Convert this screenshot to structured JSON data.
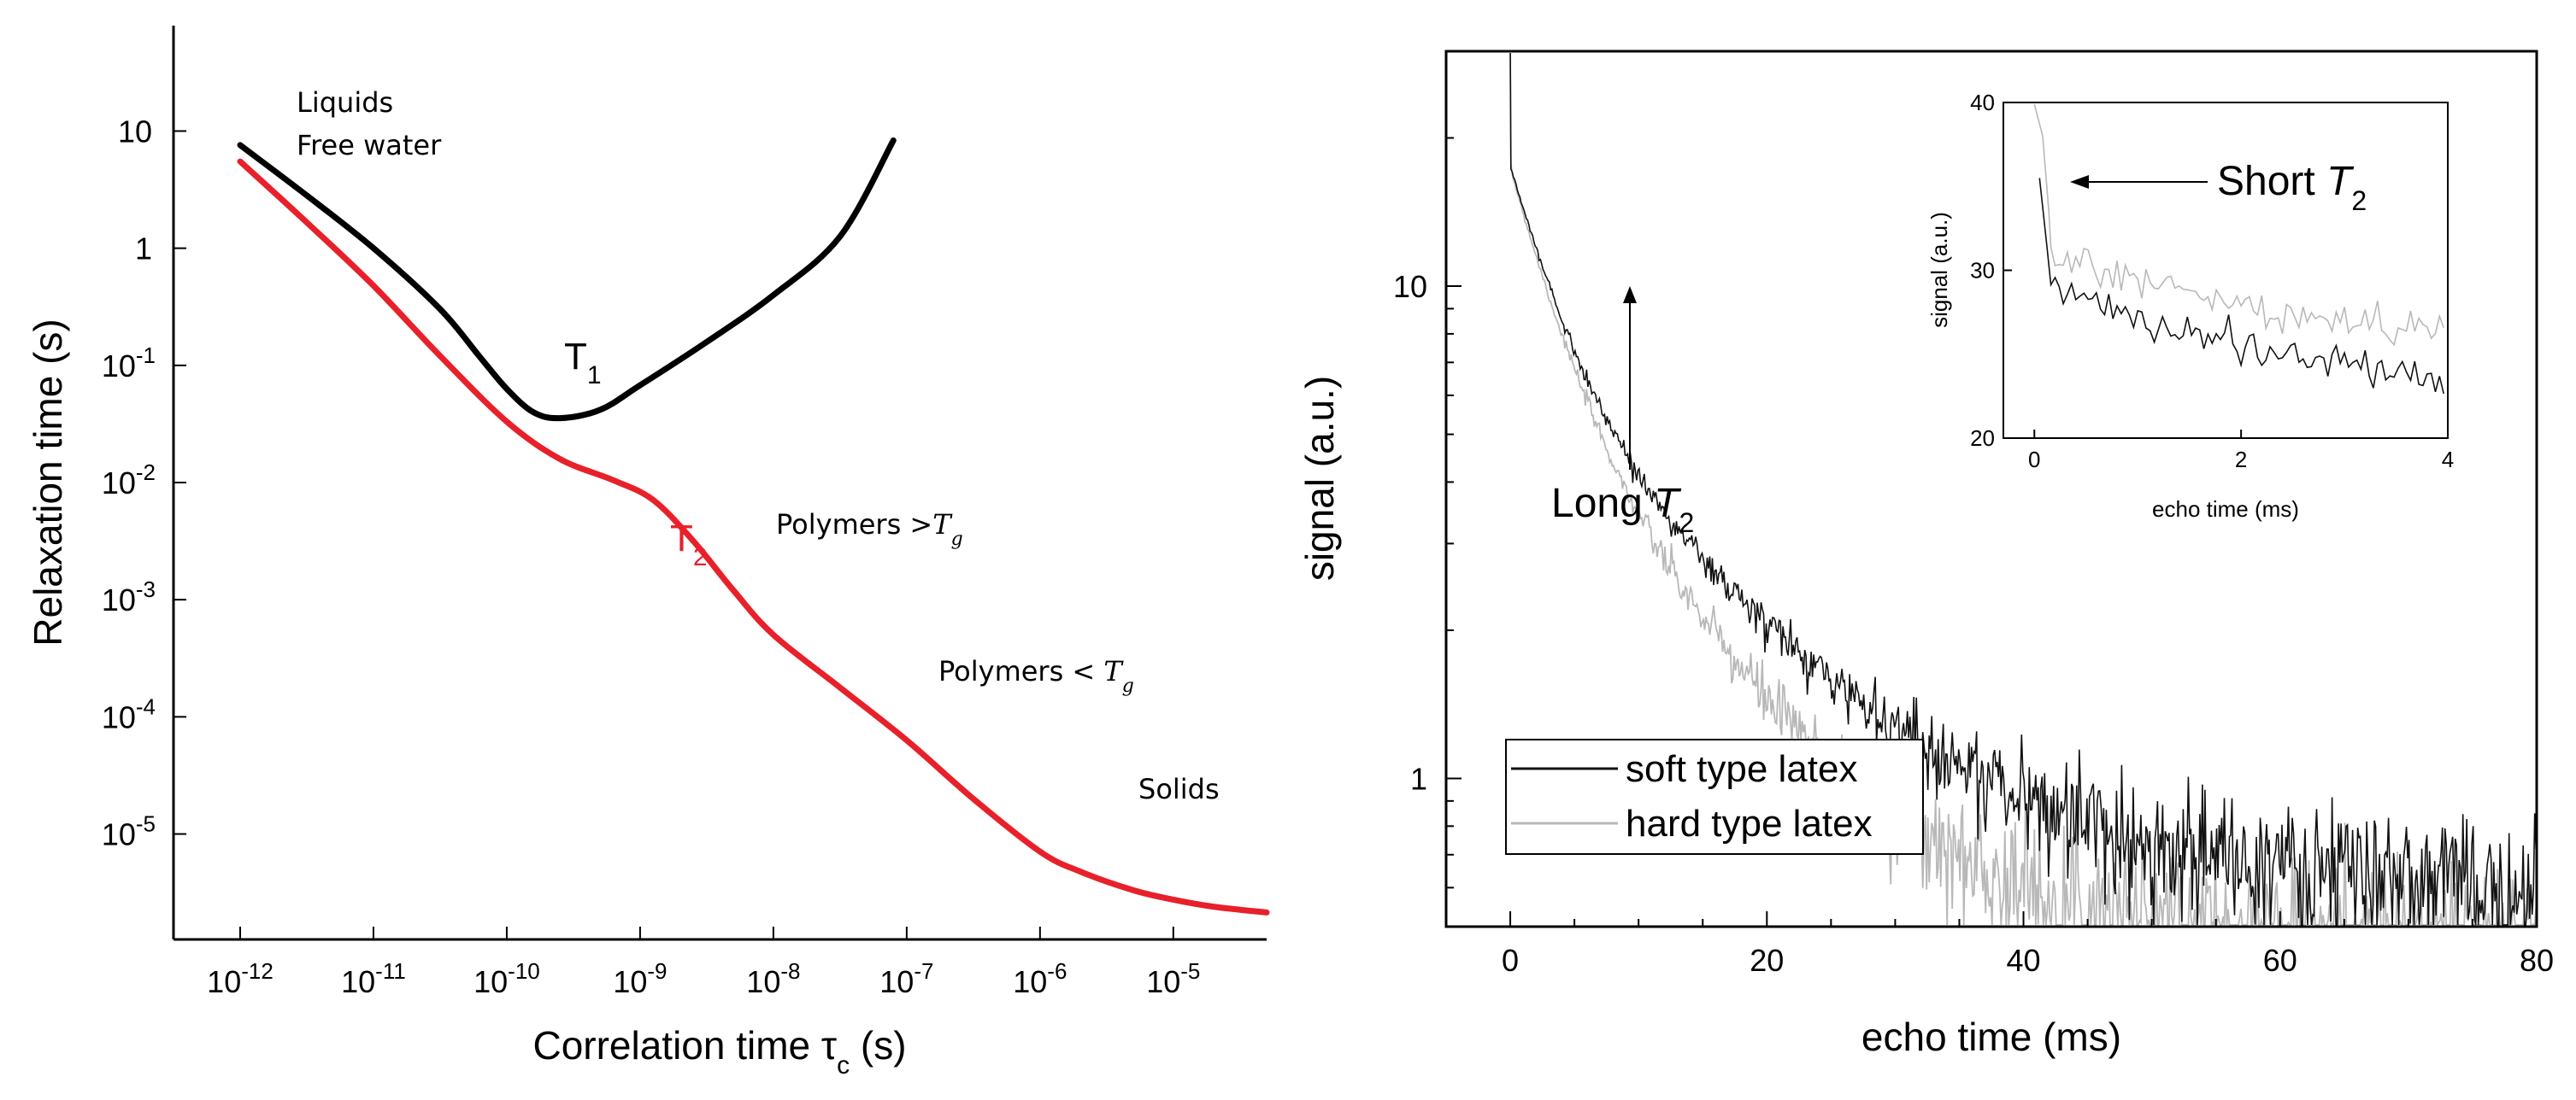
{
  "chart_data": [
    {
      "type": "line",
      "scale": "log-log",
      "xlabel": "Correlation time τ",
      "xlabel_sub": "c",
      "xlabel_unit": " (s)",
      "ylabel": "Relaxation time (s)",
      "xlim": [
        -12.5,
        -4.3
      ],
      "ylim": [
        -5.9,
        1.9
      ],
      "x_ticks": [
        {
          "exp": -12,
          "label_base": "10",
          "label_exp": "-12"
        },
        {
          "exp": -11,
          "label_base": "10",
          "label_exp": "-11"
        },
        {
          "exp": -10,
          "label_base": "10",
          "label_exp": "-10"
        },
        {
          "exp": -9,
          "label_base": "10",
          "label_exp": "-9"
        },
        {
          "exp": -8,
          "label_base": "10",
          "label_exp": "-8"
        },
        {
          "exp": -7,
          "label_base": "10",
          "label_exp": "-7"
        },
        {
          "exp": -6,
          "label_base": "10",
          "label_exp": "-6"
        },
        {
          "exp": -5,
          "label_base": "10",
          "label_exp": "-5"
        }
      ],
      "y_ticks": [
        {
          "exp": 1,
          "label": "10"
        },
        {
          "exp": 0,
          "label": "1"
        },
        {
          "exp": -1,
          "label_base": "10",
          "label_exp": "-1"
        },
        {
          "exp": -2,
          "label_base": "10",
          "label_exp": "-2"
        },
        {
          "exp": -3,
          "label_base": "10",
          "label_exp": "-3"
        },
        {
          "exp": -4,
          "label_base": "10",
          "label_exp": "-4"
        },
        {
          "exp": -5,
          "label_base": "10",
          "label_exp": "-5"
        }
      ],
      "series": [
        {
          "name": "T1",
          "label_main": "T",
          "label_sub": "1",
          "color": "#000000",
          "log_x": [
            -12.0,
            -11.5,
            -11.0,
            -10.5,
            -10.2,
            -10.0,
            -9.8,
            -9.6,
            -9.3,
            -9.0,
            -8.5,
            -8.0,
            -7.5,
            -7.1
          ],
          "log_y": [
            0.88,
            0.45,
            0.0,
            -0.52,
            -0.93,
            -1.2,
            -1.4,
            -1.45,
            -1.38,
            -1.17,
            -0.8,
            -0.4,
            0.1,
            0.92
          ]
        },
        {
          "name": "T2",
          "label_main": "T",
          "label_sub": "2",
          "color": "#e8202a",
          "log_x": [
            -12.0,
            -11.5,
            -11.0,
            -10.5,
            -10.0,
            -9.6,
            -9.2,
            -8.9,
            -8.6,
            -8.3,
            -8.0,
            -7.5,
            -7.0,
            -6.5,
            -6.0,
            -5.7,
            -5.3,
            -5.0,
            -4.7,
            -4.3
          ],
          "log_y": [
            0.74,
            0.22,
            -0.32,
            -0.92,
            -1.48,
            -1.8,
            -1.98,
            -2.15,
            -2.5,
            -2.92,
            -3.3,
            -3.75,
            -4.2,
            -4.7,
            -5.15,
            -5.32,
            -5.48,
            -5.56,
            -5.62,
            -5.67
          ]
        }
      ],
      "annotations": [
        {
          "text": "Liquids"
        },
        {
          "text": "Free water"
        },
        {
          "text": "Polymers >",
          "math": "T",
          "math_sub": "g"
        },
        {
          "text": "Polymers < ",
          "math": "T",
          "math_sub": "g"
        },
        {
          "text": "Solids"
        }
      ]
    },
    {
      "type": "line",
      "scale": "semilog-y",
      "xlabel": "echo time (ms)",
      "ylabel": "signal (a.u.)",
      "xlim": [
        -5,
        80
      ],
      "ylim": [
        0.5,
        30
      ],
      "x_ticks": [
        0,
        20,
        40,
        60,
        80
      ],
      "y_ticks": [
        {
          "value": 1,
          "label": "1"
        },
        {
          "value": 10,
          "label": "10"
        }
      ],
      "series": [
        {
          "name": "soft type latex",
          "color": "#111111"
        },
        {
          "name": "hard type latex",
          "color": "#b8b8b8"
        }
      ],
      "annotation": {
        "text": "Long ",
        "math": "T",
        "math_sub": "2",
        "at_x": 9,
        "at_y": 11
      },
      "inset": {
        "xlabel": "echo time (ms)",
        "ylabel": "signal (a.u.)",
        "xlim": [
          -0.3,
          4
        ],
        "ylim": [
          20,
          40
        ],
        "x_ticks": [
          0,
          2,
          4
        ],
        "y_ticks": [
          20,
          30,
          40
        ],
        "annotation": {
          "text": "Short ",
          "math": "T",
          "math_sub": "2",
          "at_x": 0.12,
          "at_y": 35
        }
      }
    }
  ]
}
